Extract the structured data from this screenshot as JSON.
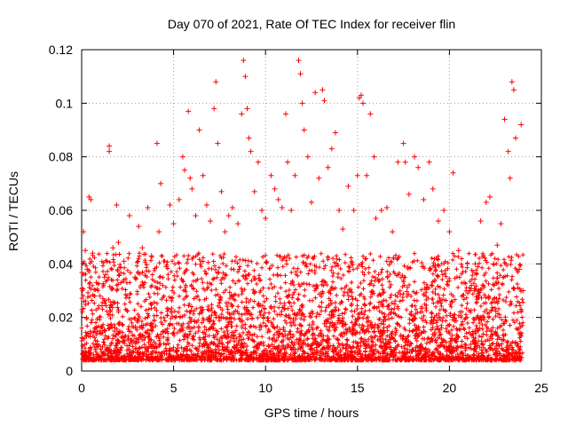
{
  "chart_data": {
    "type": "scatter",
    "title": "Day 070 of 2021, Rate Of TEC Index for receiver flin",
    "xlabel": "GPS time / hours",
    "ylabel": "ROTI / TECUs",
    "xlim": [
      0,
      25
    ],
    "ylim": [
      0,
      0.12
    ],
    "xticks": [
      0,
      5,
      10,
      15,
      20,
      25
    ],
    "yticks": [
      0,
      0.02,
      0.04,
      0.06,
      0.08,
      0.1,
      0.12
    ],
    "xtick_labels": [
      "0",
      "5",
      "10",
      "15",
      "20",
      "25"
    ],
    "ytick_labels": [
      "0",
      "0.02",
      "0.04",
      "0.06",
      "0.08",
      "0.1",
      "0.12"
    ],
    "grid": true,
    "marker": "+",
    "series": [
      {
        "color": "#ff0000",
        "points": [
          [
            0.1,
            0.052
          ],
          [
            0.2,
            0.045
          ],
          [
            0.3,
            0.038
          ],
          [
            0.4,
            0.065
          ],
          [
            0.5,
            0.064
          ],
          [
            0.6,
            0.044
          ],
          [
            0.8,
            0.033
          ],
          [
            1.0,
            0.028
          ],
          [
            1.3,
            0.036
          ],
          [
            1.5,
            0.084
          ],
          [
            1.5,
            0.082
          ],
          [
            1.7,
            0.046
          ],
          [
            1.9,
            0.062
          ],
          [
            2.0,
            0.048
          ],
          [
            2.3,
            0.041
          ],
          [
            2.6,
            0.058
          ],
          [
            2.9,
            0.035
          ],
          [
            3.1,
            0.054
          ],
          [
            3.3,
            0.046
          ],
          [
            3.6,
            0.061
          ],
          [
            3.8,
            0.043
          ],
          [
            4.1,
            0.085
          ],
          [
            4.2,
            0.052
          ],
          [
            4.3,
            0.07
          ],
          [
            4.6,
            0.039
          ],
          [
            4.8,
            0.062
          ],
          [
            5.0,
            0.055
          ],
          [
            5.3,
            0.064
          ],
          [
            5.5,
            0.08
          ],
          [
            5.6,
            0.075
          ],
          [
            5.8,
            0.097
          ],
          [
            5.9,
            0.072
          ],
          [
            6.0,
            0.068
          ],
          [
            6.2,
            0.058
          ],
          [
            6.4,
            0.09
          ],
          [
            6.6,
            0.073
          ],
          [
            6.8,
            0.062
          ],
          [
            7.0,
            0.056
          ],
          [
            7.2,
            0.098
          ],
          [
            7.3,
            0.108
          ],
          [
            7.4,
            0.085
          ],
          [
            7.6,
            0.067
          ],
          [
            7.8,
            0.052
          ],
          [
            8.0,
            0.058
          ],
          [
            8.2,
            0.061
          ],
          [
            8.5,
            0.055
          ],
          [
            8.7,
            0.096
          ],
          [
            8.8,
            0.116
          ],
          [
            8.9,
            0.11
          ],
          [
            9.0,
            0.098
          ],
          [
            9.1,
            0.087
          ],
          [
            9.2,
            0.082
          ],
          [
            9.4,
            0.067
          ],
          [
            9.6,
            0.078
          ],
          [
            9.8,
            0.06
          ],
          [
            10.0,
            0.057
          ],
          [
            10.3,
            0.073
          ],
          [
            10.5,
            0.068
          ],
          [
            10.7,
            0.064
          ],
          [
            10.9,
            0.061
          ],
          [
            11.1,
            0.096
          ],
          [
            11.2,
            0.078
          ],
          [
            11.4,
            0.06
          ],
          [
            11.6,
            0.073
          ],
          [
            11.8,
            0.116
          ],
          [
            11.9,
            0.111
          ],
          [
            12.0,
            0.1
          ],
          [
            12.1,
            0.09
          ],
          [
            12.3,
            0.08
          ],
          [
            12.5,
            0.063
          ],
          [
            12.7,
            0.104
          ],
          [
            12.9,
            0.072
          ],
          [
            13.1,
            0.105
          ],
          [
            13.2,
            0.101
          ],
          [
            13.4,
            0.076
          ],
          [
            13.6,
            0.083
          ],
          [
            13.8,
            0.089
          ],
          [
            14.0,
            0.06
          ],
          [
            14.2,
            0.053
          ],
          [
            14.5,
            0.069
          ],
          [
            14.8,
            0.06
          ],
          [
            15.0,
            0.073
          ],
          [
            15.1,
            0.102
          ],
          [
            15.2,
            0.103
          ],
          [
            15.3,
            0.1
          ],
          [
            15.5,
            0.073
          ],
          [
            15.7,
            0.096
          ],
          [
            15.9,
            0.08
          ],
          [
            16.0,
            0.057
          ],
          [
            16.3,
            0.06
          ],
          [
            16.6,
            0.061
          ],
          [
            16.9,
            0.052
          ],
          [
            17.2,
            0.078
          ],
          [
            17.5,
            0.085
          ],
          [
            17.6,
            0.078
          ],
          [
            17.8,
            0.066
          ],
          [
            18.1,
            0.08
          ],
          [
            18.3,
            0.076
          ],
          [
            18.6,
            0.064
          ],
          [
            18.9,
            0.078
          ],
          [
            19.1,
            0.068
          ],
          [
            19.4,
            0.056
          ],
          [
            19.7,
            0.06
          ],
          [
            20.0,
            0.052
          ],
          [
            20.2,
            0.074
          ],
          [
            20.5,
            0.045
          ],
          [
            20.8,
            0.033
          ],
          [
            21.1,
            0.03
          ],
          [
            21.4,
            0.04
          ],
          [
            21.7,
            0.056
          ],
          [
            22.0,
            0.063
          ],
          [
            22.2,
            0.065
          ],
          [
            22.4,
            0.04
          ],
          [
            22.6,
            0.047
          ],
          [
            22.8,
            0.055
          ],
          [
            23.0,
            0.094
          ],
          [
            23.2,
            0.082
          ],
          [
            23.3,
            0.072
          ],
          [
            23.4,
            0.108
          ],
          [
            23.5,
            0.105
          ],
          [
            23.6,
            0.087
          ],
          [
            23.8,
            0.038
          ],
          [
            23.9,
            0.092
          ],
          [
            24.0,
            0.03
          ]
        ]
      }
    ]
  }
}
